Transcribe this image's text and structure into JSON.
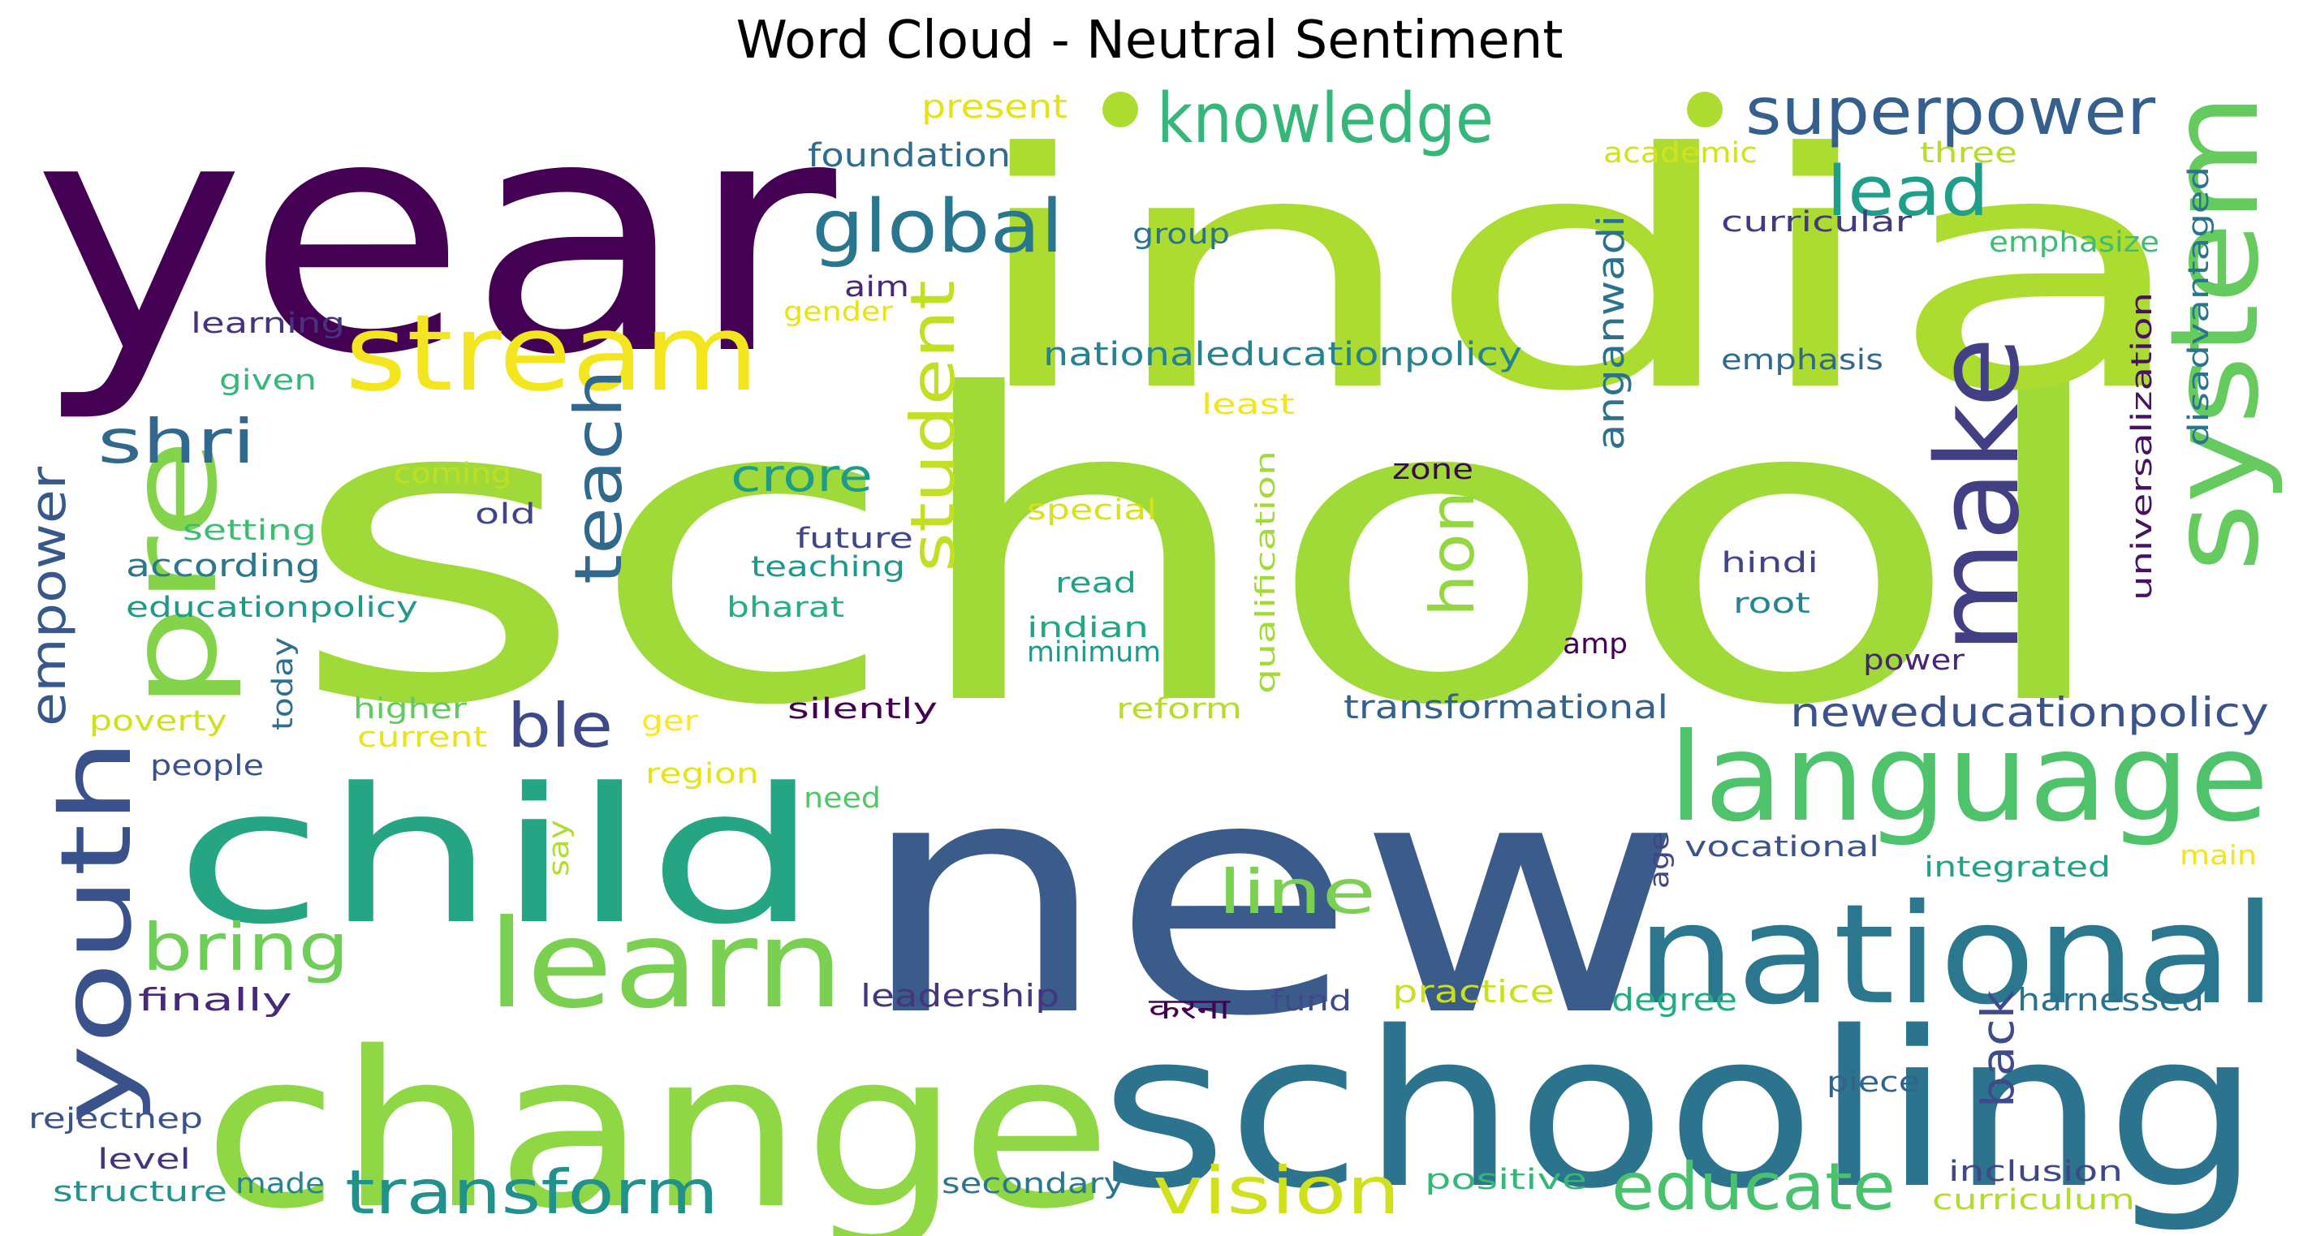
{
  "chart_data": {
    "type": "wordcloud",
    "title": "Word Cloud - Neutral Sentiment",
    "words": [
      {
        "text": "school",
        "color": "#a0da39"
      },
      {
        "text": "year",
        "color": "#440154"
      },
      {
        "text": "india",
        "color": "#addc30"
      },
      {
        "text": "new",
        "color": "#3b5b8b"
      },
      {
        "text": "change",
        "color": "#8fd744"
      },
      {
        "text": "schooling",
        "color": "#2c738e"
      },
      {
        "text": "child",
        "color": "#25a584"
      },
      {
        "text": "national",
        "color": "#2a778e"
      },
      {
        "text": "language",
        "color": "#4ec36b"
      },
      {
        "text": "stream",
        "color": "#f3e51e"
      },
      {
        "text": "learn",
        "color": "#7ad151"
      },
      {
        "text": "system",
        "color": "#65cb5e"
      },
      {
        "text": "pre",
        "color": "#84d44b"
      },
      {
        "text": "make",
        "color": "#423f85"
      },
      {
        "text": "youth",
        "color": "#3a528b"
      },
      {
        "text": "knowledge",
        "color": "#35b779"
      },
      {
        "text": "superpower",
        "color": "#355f8d"
      },
      {
        "text": "global",
        "color": "#2a768e"
      },
      {
        "text": "educate",
        "color": "#4ac16d"
      },
      {
        "text": "vision",
        "color": "#d0e11c"
      },
      {
        "text": "transform",
        "color": "#21918c"
      },
      {
        "text": "bring",
        "color": "#6ece58"
      },
      {
        "text": "teach",
        "color": "#31688e"
      },
      {
        "text": "student",
        "color": "#c2df23"
      },
      {
        "text": "lead",
        "color": "#1f9e89"
      },
      {
        "text": "shri",
        "color": "#31688e"
      },
      {
        "text": "hon",
        "color": "#93d741"
      },
      {
        "text": "ble",
        "color": "#3e4989"
      },
      {
        "text": "line",
        "color": "#7ad151"
      },
      {
        "text": "empower",
        "color": "#38588c"
      },
      {
        "text": "crore",
        "color": "#1e9c89"
      },
      {
        "text": "back",
        "color": "#3e4a89"
      },
      {
        "text": "anganwadi",
        "color": "#2c728e"
      },
      {
        "text": "neweducationpolicy",
        "color": "#3b528b"
      },
      {
        "text": "nationaleducationpolicy",
        "color": "#26828e"
      },
      {
        "text": "transformational",
        "color": "#33638d"
      },
      {
        "text": "foundation",
        "color": "#2f6c8e"
      },
      {
        "text": "present",
        "color": "#e2e418"
      },
      {
        "text": "academic",
        "color": "#d2e21b"
      },
      {
        "text": "three",
        "color": "#b5de2b"
      },
      {
        "text": "curricular",
        "color": "#453882"
      },
      {
        "text": "emphasize",
        "color": "#3dbc74"
      },
      {
        "text": "group",
        "color": "#2c728e"
      },
      {
        "text": "aim",
        "color": "#482878"
      },
      {
        "text": "gender",
        "color": "#e5e419"
      },
      {
        "text": "learning",
        "color": "#46327e"
      },
      {
        "text": "given",
        "color": "#35b779"
      },
      {
        "text": "least",
        "color": "#f1e51d"
      },
      {
        "text": "emphasis",
        "color": "#31688e"
      },
      {
        "text": "coming",
        "color": "#bddf26"
      },
      {
        "text": "zone",
        "color": "#3e0751"
      },
      {
        "text": "special",
        "color": "#d8e219"
      },
      {
        "text": "old",
        "color": "#414487"
      },
      {
        "text": "setting",
        "color": "#3dbc74"
      },
      {
        "text": "future",
        "color": "#3f4788"
      },
      {
        "text": "according",
        "color": "#2a768e"
      },
      {
        "text": "teaching",
        "color": "#1f988b"
      },
      {
        "text": "read",
        "color": "#1fa187"
      },
      {
        "text": "hindi",
        "color": "#414487"
      },
      {
        "text": "root",
        "color": "#25858e"
      },
      {
        "text": "educationpolicy",
        "color": "#1f9a8a"
      },
      {
        "text": "bharat",
        "color": "#26ad81"
      },
      {
        "text": "indian",
        "color": "#22a785"
      },
      {
        "text": "minimum",
        "color": "#1f998a"
      },
      {
        "text": "amp",
        "color": "#440154"
      },
      {
        "text": "power",
        "color": "#482475"
      },
      {
        "text": "today",
        "color": "#2e6e8e"
      },
      {
        "text": "higher",
        "color": "#60ca60"
      },
      {
        "text": "silently",
        "color": "#440154"
      },
      {
        "text": "reform",
        "color": "#b5de2b"
      },
      {
        "text": "poverty",
        "color": "#d0e11c"
      },
      {
        "text": "current",
        "color": "#e7e419"
      },
      {
        "text": "ger",
        "color": "#fde725"
      },
      {
        "text": "people",
        "color": "#3b528b"
      },
      {
        "text": "region",
        "color": "#e5e419"
      },
      {
        "text": "need",
        "color": "#54c568"
      },
      {
        "text": "say",
        "color": "#b0dd2f"
      },
      {
        "text": "age",
        "color": "#404688"
      },
      {
        "text": "vocational",
        "color": "#3b528b"
      },
      {
        "text": "integrated",
        "color": "#1fa287"
      },
      {
        "text": "main",
        "color": "#f1e51d"
      },
      {
        "text": "finally",
        "color": "#482878"
      },
      {
        "text": "leadership",
        "color": "#463480"
      },
      {
        "text": "करना",
        "color": "#440154"
      },
      {
        "text": "fund",
        "color": "#3e4a89"
      },
      {
        "text": "practice",
        "color": "#c8e020"
      },
      {
        "text": "degree",
        "color": "#25ab82"
      },
      {
        "text": "harnessed",
        "color": "#2d708e"
      },
      {
        "text": "piece",
        "color": "#33638d"
      },
      {
        "text": "rejectnep",
        "color": "#3b528b"
      },
      {
        "text": "level",
        "color": "#46337e"
      },
      {
        "text": "structure",
        "color": "#20938c"
      },
      {
        "text": "made",
        "color": "#25858e"
      },
      {
        "text": "secondary",
        "color": "#2a768e"
      },
      {
        "text": "positive",
        "color": "#35b779"
      },
      {
        "text": "inclusion",
        "color": "#3f4788"
      },
      {
        "text": "curriculum",
        "color": "#b2dd2d"
      },
      {
        "text": "qualification",
        "color": "#a2da37"
      },
      {
        "text": "universalization",
        "color": "#471164"
      },
      {
        "text": "disadvantaged",
        "color": "#2b748e"
      }
    ]
  }
}
